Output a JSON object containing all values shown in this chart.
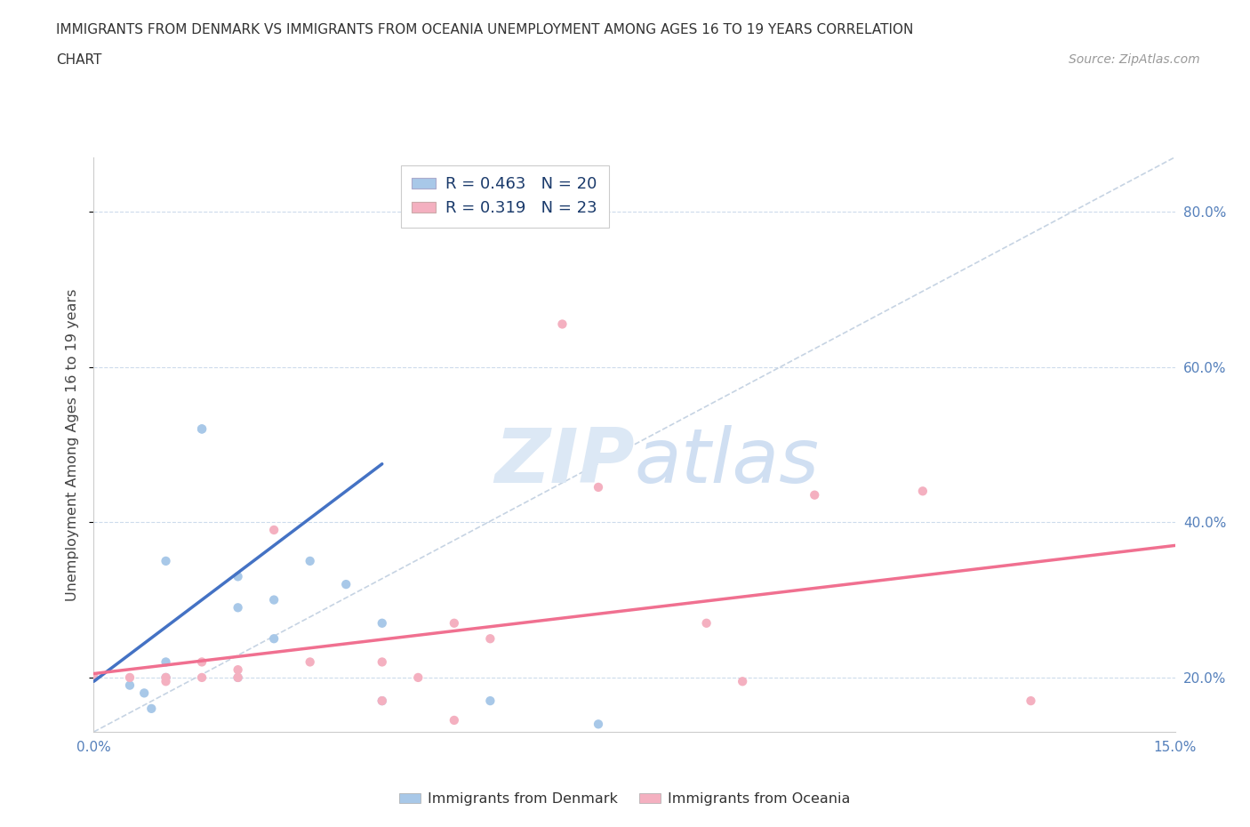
{
  "title_line1": "IMMIGRANTS FROM DENMARK VS IMMIGRANTS FROM OCEANIA UNEMPLOYMENT AMONG AGES 16 TO 19 YEARS CORRELATION",
  "title_line2": "CHART",
  "source": "Source: ZipAtlas.com",
  "ylabel": "Unemployment Among Ages 16 to 19 years",
  "xlim": [
    0.0,
    0.15
  ],
  "ylim": [
    0.13,
    0.87
  ],
  "x_ticks": [
    0.0,
    0.025,
    0.05,
    0.075,
    0.1,
    0.125,
    0.15
  ],
  "x_tick_labels": [
    "0.0%",
    "",
    "",
    "",
    "",
    "",
    "15.0%"
  ],
  "y_ticks": [
    0.2,
    0.4,
    0.6,
    0.8
  ],
  "y_tick_labels": [
    "20.0%",
    "40.0%",
    "60.0%",
    "80.0%"
  ],
  "denmark_color": "#a8c8e8",
  "oceania_color": "#f4b0c0",
  "denmark_line_color": "#4472c4",
  "oceania_line_color": "#f07090",
  "diagonal_color": "#c0cfe0",
  "watermark_color": "#dce8f5",
  "legend_R1": "R = 0.463",
  "legend_N1": "N = 20",
  "legend_R2": "R = 0.319",
  "legend_N2": "N = 23",
  "denmark_x": [
    0.0,
    0.005,
    0.007,
    0.008,
    0.01,
    0.01,
    0.01,
    0.015,
    0.015,
    0.02,
    0.02,
    0.02,
    0.025,
    0.025,
    0.03,
    0.035,
    0.04,
    0.04,
    0.055,
    0.07
  ],
  "denmark_y": [
    0.2,
    0.19,
    0.18,
    0.16,
    0.2,
    0.22,
    0.35,
    0.52,
    0.52,
    0.29,
    0.33,
    0.2,
    0.3,
    0.25,
    0.35,
    0.32,
    0.27,
    0.17,
    0.17,
    0.14
  ],
  "oceania_x": [
    0.0,
    0.005,
    0.01,
    0.01,
    0.015,
    0.015,
    0.02,
    0.02,
    0.025,
    0.03,
    0.04,
    0.04,
    0.045,
    0.05,
    0.05,
    0.055,
    0.065,
    0.07,
    0.085,
    0.09,
    0.1,
    0.115,
    0.13
  ],
  "oceania_y": [
    0.2,
    0.2,
    0.195,
    0.2,
    0.2,
    0.22,
    0.2,
    0.21,
    0.39,
    0.22,
    0.22,
    0.17,
    0.2,
    0.27,
    0.145,
    0.25,
    0.655,
    0.445,
    0.27,
    0.195,
    0.435,
    0.44,
    0.17
  ],
  "denmark_fit_x": [
    0.0,
    0.04
  ],
  "denmark_fit_y": [
    0.195,
    0.475
  ],
  "oceania_fit_x": [
    0.0,
    0.15
  ],
  "oceania_fit_y": [
    0.205,
    0.37
  ],
  "diagonal_fit_x": [
    0.0,
    0.15
  ],
  "diagonal_fit_y": [
    0.13,
    0.87
  ]
}
